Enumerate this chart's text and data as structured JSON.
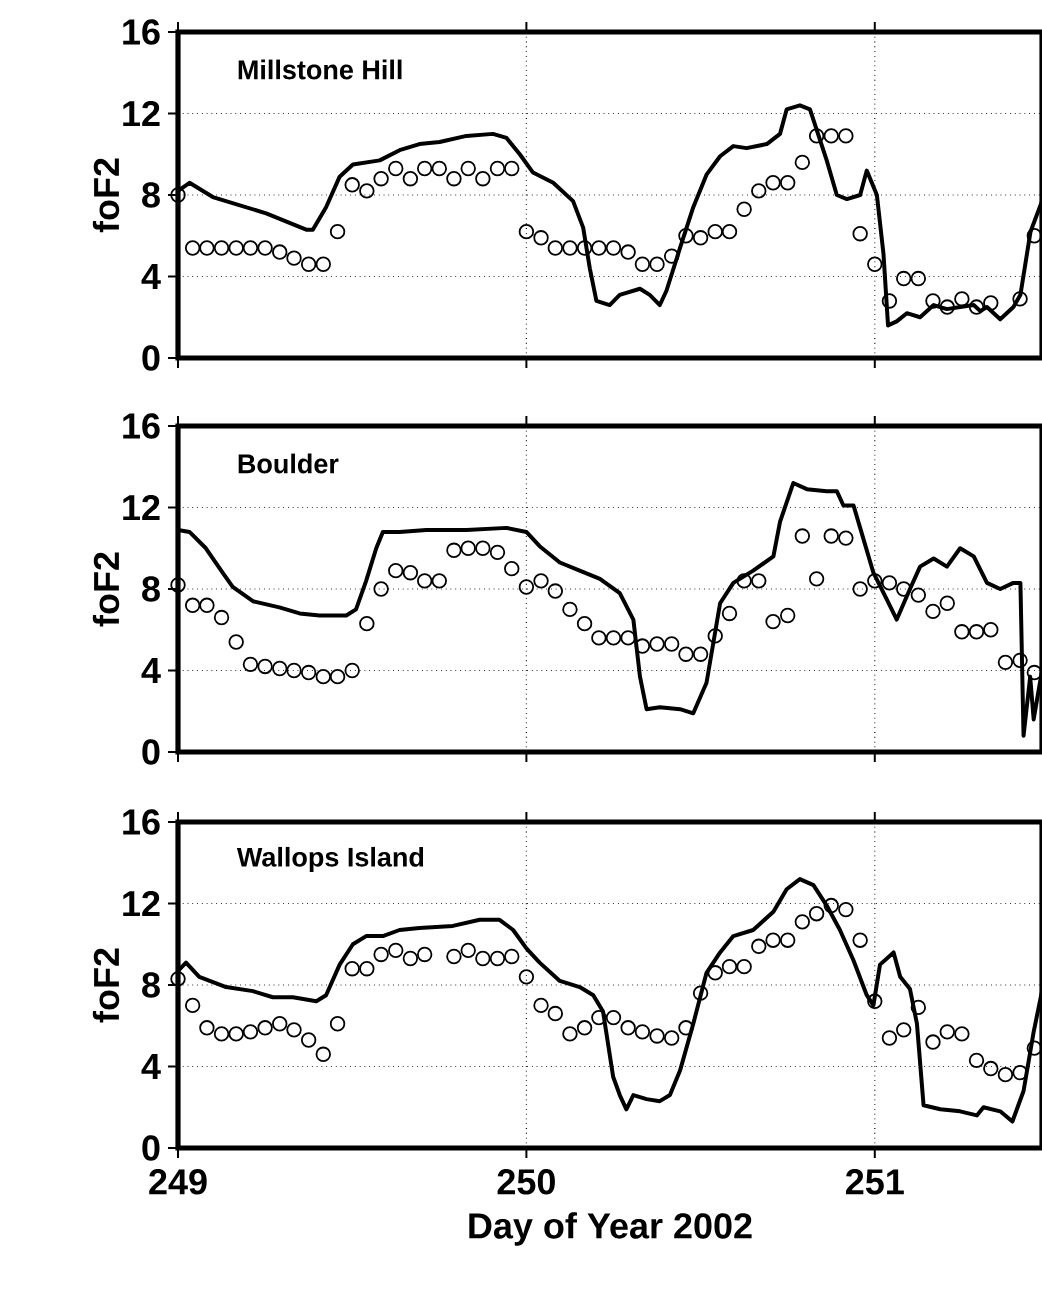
{
  "chart_data": [
    {
      "type": "line",
      "title": "Millstone Hill",
      "ylabel": "foF2",
      "xlim": [
        249,
        251.48
      ],
      "ylim": [
        0,
        16
      ],
      "xticks": [
        249,
        250,
        251
      ],
      "yticks": [
        0,
        4,
        8,
        12,
        16
      ],
      "grid": true,
      "tick_labels": "y",
      "series": [
        {
          "type": "line",
          "color": "#000000",
          "marker": "none",
          "line_style": "solid",
          "x": [
            249,
            249.033,
            249.1,
            249.253,
            249.368,
            249.387,
            249.425,
            249.464,
            249.502,
            249.579,
            249.636,
            249.693,
            249.751,
            249.828,
            249.904,
            249.943,
            249.981,
            250.019,
            250.077,
            250.134,
            250.163,
            250.182,
            250.201,
            250.239,
            250.268,
            250.326,
            250.354,
            250.383,
            250.402,
            250.441,
            250.479,
            250.517,
            250.556,
            250.594,
            250.632,
            250.69,
            250.728,
            250.747,
            250.785,
            250.814,
            250.862,
            250.891,
            250.92,
            250.958,
            250.977,
            251.006,
            251.025,
            251.038,
            251.063,
            251.092,
            251.13,
            251.169,
            251.207,
            251.245,
            251.284,
            251.303,
            251.322,
            251.36,
            251.398,
            251.418,
            251.447,
            251.48
          ],
          "values": [
            8.2,
            8.6,
            7.9,
            7.1,
            6.3,
            6.3,
            7.4,
            8.9,
            9.5,
            9.7,
            10.2,
            10.5,
            10.6,
            10.9,
            11.0,
            10.8,
            10.0,
            9.1,
            8.6,
            7.7,
            6.4,
            4.4,
            2.8,
            2.6,
            3.1,
            3.4,
            3.1,
            2.6,
            3.3,
            5.4,
            7.4,
            9.0,
            9.9,
            10.4,
            10.3,
            10.5,
            11.0,
            12.2,
            12.4,
            12.2,
            9.7,
            8.0,
            7.8,
            8.0,
            9.2,
            8.0,
            5.1,
            1.6,
            1.8,
            2.2,
            2.0,
            2.6,
            2.4,
            2.5,
            2.6,
            2.3,
            2.5,
            1.9,
            2.5,
            3.1,
            6.2,
            7.7
          ]
        },
        {
          "type": "scatter",
          "color": "#000000",
          "marker": "circle",
          "x": [
            249,
            249.042,
            249.083,
            249.125,
            249.167,
            249.208,
            249.25,
            249.292,
            249.333,
            249.375,
            249.417,
            249.458,
            249.5,
            249.542,
            249.583,
            249.625,
            249.667,
            249.708,
            249.75,
            249.792,
            249.833,
            249.875,
            249.917,
            249.958,
            250,
            250.042,
            250.083,
            250.125,
            250.167,
            250.208,
            250.25,
            250.292,
            250.333,
            250.375,
            250.417,
            250.458,
            250.5,
            250.542,
            250.583,
            250.625,
            250.667,
            250.708,
            250.75,
            250.792,
            250.833,
            250.875,
            250.917,
            250.958,
            251,
            251.042,
            251.083,
            251.125,
            251.167,
            251.208,
            251.25,
            251.292,
            251.333,
            251.417,
            251.458
          ],
          "values": [
            8.0,
            5.4,
            5.4,
            5.4,
            5.4,
            5.4,
            5.4,
            5.2,
            4.9,
            4.6,
            4.6,
            6.2,
            8.5,
            8.2,
            8.8,
            9.3,
            8.8,
            9.3,
            9.3,
            8.8,
            9.3,
            8.8,
            9.3,
            9.3,
            6.2,
            5.9,
            5.4,
            5.4,
            5.4,
            5.4,
            5.4,
            5.2,
            4.6,
            4.6,
            5.0,
            6.0,
            5.9,
            6.2,
            6.2,
            7.3,
            8.2,
            8.6,
            8.6,
            9.6,
            10.9,
            10.9,
            10.9,
            6.1,
            4.6,
            2.8,
            3.9,
            3.9,
            2.8,
            2.5,
            2.9,
            2.5,
            2.7,
            2.9,
            6.0
          ]
        }
      ]
    },
    {
      "type": "line",
      "title": "Boulder",
      "ylabel": "foF2",
      "xlim": [
        249,
        251.48
      ],
      "ylim": [
        0,
        16
      ],
      "xticks": [
        249,
        250,
        251
      ],
      "yticks": [
        0,
        4,
        8,
        12,
        16
      ],
      "grid": true,
      "tick_labels": "y",
      "series": [
        {
          "type": "line",
          "color": "#000000",
          "marker": "none",
          "line_style": "solid",
          "x": [
            249,
            249.033,
            249.08,
            249.128,
            249.157,
            249.215,
            249.291,
            249.349,
            249.406,
            249.483,
            249.511,
            249.54,
            249.569,
            249.588,
            249.636,
            249.713,
            249.828,
            249.943,
            250.0,
            250.038,
            250.096,
            250.153,
            250.211,
            250.268,
            250.307,
            250.326,
            250.345,
            250.383,
            250.441,
            250.479,
            250.517,
            250.556,
            250.594,
            250.651,
            250.709,
            250.728,
            250.766,
            250.805,
            250.862,
            250.891,
            250.91,
            250.939,
            250.958,
            250.996,
            251.034,
            251.063,
            251.101,
            251.13,
            251.169,
            251.207,
            251.245,
            251.284,
            251.322,
            251.36,
            251.398,
            251.418,
            251.427,
            251.446,
            251.456,
            251.48
          ],
          "values": [
            10.9,
            10.8,
            10.0,
            8.8,
            8.1,
            7.4,
            7.1,
            6.8,
            6.7,
            6.7,
            7.0,
            8.4,
            10.0,
            10.8,
            10.8,
            10.9,
            10.9,
            11.0,
            10.8,
            10.1,
            9.3,
            8.9,
            8.5,
            7.8,
            6.5,
            3.7,
            2.1,
            2.2,
            2.1,
            1.9,
            3.4,
            7.3,
            8.3,
            8.9,
            9.6,
            11.3,
            13.2,
            12.9,
            12.8,
            12.8,
            12.1,
            12.1,
            11.0,
            8.8,
            7.5,
            6.5,
            8.0,
            9.1,
            9.5,
            9.1,
            10.0,
            9.6,
            8.3,
            8.0,
            8.3,
            8.3,
            0.8,
            3.7,
            1.6,
            4.0
          ]
        },
        {
          "type": "scatter",
          "color": "#000000",
          "marker": "circle",
          "x": [
            249,
            249.042,
            249.083,
            249.125,
            249.167,
            249.208,
            249.25,
            249.292,
            249.333,
            249.375,
            249.417,
            249.458,
            249.5,
            249.542,
            249.583,
            249.625,
            249.667,
            249.708,
            249.75,
            249.792,
            249.833,
            249.875,
            249.917,
            249.958,
            250,
            250.042,
            250.083,
            250.125,
            250.167,
            250.208,
            250.25,
            250.292,
            250.333,
            250.375,
            250.417,
            250.458,
            250.5,
            250.542,
            250.583,
            250.625,
            250.667,
            250.708,
            250.75,
            250.792,
            250.833,
            250.875,
            250.917,
            250.958,
            251,
            251.042,
            251.083,
            251.125,
            251.167,
            251.208,
            251.25,
            251.292,
            251.333,
            251.375,
            251.417,
            251.458
          ],
          "values": [
            8.2,
            7.2,
            7.2,
            6.6,
            5.4,
            4.3,
            4.2,
            4.1,
            4.0,
            3.9,
            3.7,
            3.7,
            4.0,
            6.3,
            8.0,
            8.9,
            8.8,
            8.4,
            8.4,
            9.9,
            10.0,
            10.0,
            9.8,
            9.0,
            8.1,
            8.4,
            7.9,
            7.0,
            6.3,
            5.6,
            5.6,
            5.6,
            5.2,
            5.3,
            5.3,
            4.8,
            4.8,
            5.7,
            6.8,
            8.4,
            8.4,
            6.4,
            6.7,
            10.6,
            8.5,
            10.6,
            10.5,
            8.0,
            8.4,
            8.3,
            8.0,
            7.7,
            6.9,
            7.3,
            5.9,
            5.9,
            6.0,
            4.4,
            4.5,
            3.9
          ]
        }
      ]
    },
    {
      "type": "line",
      "title": "Wallops Island",
      "ylabel": "foF2",
      "xlabel": "Day of Year 2002",
      "xlim": [
        249,
        251.48
      ],
      "ylim": [
        0,
        16
      ],
      "xticks": [
        249,
        250,
        251
      ],
      "yticks": [
        0,
        4,
        8,
        12,
        16
      ],
      "grid": true,
      "series": [
        {
          "type": "line",
          "color": "#000000",
          "marker": "none",
          "line_style": "solid",
          "x": [
            249,
            249.023,
            249.061,
            249.138,
            249.215,
            249.272,
            249.33,
            249.397,
            249.425,
            249.464,
            249.502,
            249.54,
            249.588,
            249.636,
            249.693,
            249.789,
            249.866,
            249.923,
            249.962,
            250.0,
            250.038,
            250.096,
            250.153,
            250.192,
            250.22,
            250.249,
            250.268,
            250.287,
            250.307,
            250.345,
            250.383,
            250.412,
            250.441,
            250.479,
            250.517,
            250.556,
            250.594,
            250.651,
            250.709,
            250.747,
            250.785,
            250.824,
            250.862,
            250.9,
            250.939,
            250.977,
            250.996,
            251.015,
            251.054,
            251.073,
            251.101,
            251.121,
            251.14,
            251.188,
            251.245,
            251.293,
            251.312,
            251.36,
            251.395,
            251.427,
            251.456,
            251.48
          ],
          "values": [
            8.7,
            9.1,
            8.4,
            7.9,
            7.7,
            7.4,
            7.4,
            7.2,
            7.5,
            9.0,
            10.0,
            10.4,
            10.4,
            10.7,
            10.8,
            10.9,
            11.2,
            11.2,
            10.7,
            9.8,
            9.1,
            8.2,
            7.9,
            7.5,
            6.7,
            3.5,
            2.6,
            1.9,
            2.6,
            2.4,
            2.3,
            2.6,
            3.8,
            6.1,
            8.6,
            9.6,
            10.4,
            10.7,
            11.6,
            12.7,
            13.2,
            12.9,
            11.9,
            10.7,
            9.2,
            7.5,
            7.0,
            9.0,
            9.6,
            8.4,
            7.8,
            6.1,
            2.1,
            1.9,
            1.8,
            1.6,
            2.0,
            1.8,
            1.3,
            2.8,
            5.7,
            7.7
          ]
        },
        {
          "type": "scatter",
          "color": "#000000",
          "marker": "circle",
          "x": [
            249,
            249.042,
            249.083,
            249.125,
            249.167,
            249.208,
            249.25,
            249.292,
            249.333,
            249.375,
            249.417,
            249.458,
            249.5,
            249.542,
            249.583,
            249.625,
            249.667,
            249.708,
            249.792,
            249.833,
            249.875,
            249.917,
            249.958,
            250,
            250.042,
            250.083,
            250.125,
            250.167,
            250.208,
            250.25,
            250.292,
            250.333,
            250.375,
            250.417,
            250.458,
            250.5,
            250.542,
            250.583,
            250.625,
            250.667,
            250.708,
            250.75,
            250.792,
            250.833,
            250.875,
            250.917,
            250.958,
            251,
            251.042,
            251.083,
            251.125,
            251.167,
            251.208,
            251.25,
            251.292,
            251.333,
            251.375,
            251.417,
            251.458
          ],
          "values": [
            8.3,
            7.0,
            5.9,
            5.6,
            5.6,
            5.7,
            5.9,
            6.1,
            5.8,
            5.3,
            4.6,
            6.1,
            8.8,
            8.8,
            9.5,
            9.7,
            9.3,
            9.5,
            9.4,
            9.7,
            9.3,
            9.3,
            9.4,
            8.4,
            7.0,
            6.6,
            5.6,
            5.9,
            6.4,
            6.4,
            5.9,
            5.7,
            5.5,
            5.4,
            5.9,
            7.6,
            8.6,
            8.9,
            8.9,
            9.9,
            10.2,
            10.2,
            11.1,
            11.5,
            11.9,
            11.7,
            10.2,
            7.2,
            5.4,
            5.8,
            6.9,
            5.2,
            5.7,
            5.6,
            4.3,
            3.9,
            3.6,
            3.7,
            4.9
          ]
        }
      ]
    }
  ]
}
